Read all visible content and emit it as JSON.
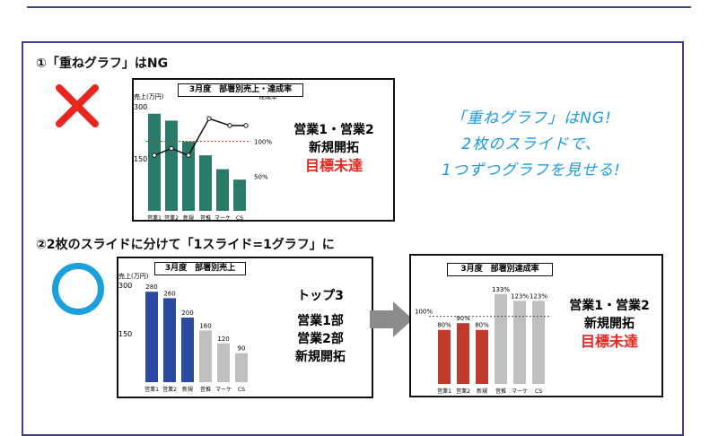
{
  "headings": {
    "section1": "①「重ねグラフ」はNG",
    "section2": "②2枚のスライドに分けて「1スライド=1グラフ」に"
  },
  "icons": {
    "ng_mark": "cross-icon",
    "ok_mark": "circle-icon",
    "arrow": "right-arrow-icon",
    "ng_color": "#e8261f",
    "ok_color": "#1aa0dc"
  },
  "handwritten_note": {
    "line1": "「重ねグラフ」はNG!",
    "line2": "2枚のスライドで、",
    "line3": "1つずつグラフを見せる!"
  },
  "chart1_side": {
    "line1": "営業1・営業2",
    "line2": "新規開拓",
    "line3": "目標未達"
  },
  "chart2_side": {
    "line1": "トップ3",
    "line2": "営業1部",
    "line3": "営業2部",
    "line4": "新規開拓"
  },
  "chart3_side": {
    "line1": "営業1・営業2",
    "line2": "新規開拓",
    "line3": "目標未達"
  },
  "chart_data": [
    {
      "type": "bar",
      "title": "3月度　部署別売上・達成率",
      "ylabel": "売上(万円)",
      "ylabel_right": "達成率",
      "categories": [
        "営業1",
        "営業2",
        "新規",
        "営推",
        "マーケ",
        "CS"
      ],
      "values": [
        280,
        260,
        200,
        160,
        120,
        90
      ],
      "y_ticks": [
        "300",
        "150"
      ],
      "ylim": [
        0,
        300
      ],
      "bar_color": "#2a7a6c",
      "line_series": {
        "values": [
          80,
          90,
          80,
          133,
          123,
          123
        ],
        "ylim": [
          0,
          150
        ]
      },
      "reference_line": {
        "value": 100,
        "label": "100%",
        "color": "#e8261f"
      },
      "right_ticks": [
        "100%",
        "50%"
      ]
    },
    {
      "type": "bar",
      "title": "3月度　部署別売上",
      "ylabel": "売上(万円)",
      "categories": [
        "営業1",
        "営業2",
        "新規",
        "営推",
        "マーケ",
        "CS"
      ],
      "values": [
        280,
        260,
        200,
        160,
        120,
        90
      ],
      "value_labels": [
        "280",
        "260",
        "200",
        "160",
        "120",
        "90"
      ],
      "y_ticks": [
        "300",
        "150"
      ],
      "ylim": [
        0,
        300
      ],
      "highlight_color": "#2a4aa0",
      "other_color": "#bfbfbf",
      "highlight_count": 3
    },
    {
      "type": "bar",
      "title": "3月度　部署別達成率",
      "categories": [
        "営業1",
        "営業2",
        "新規",
        "営推",
        "マーケ",
        "CS"
      ],
      "values": [
        80,
        90,
        80,
        133,
        123,
        123
      ],
      "value_labels": [
        "80%",
        "90%",
        "80%",
        "133%",
        "123%",
        "123%"
      ],
      "ylim": [
        0,
        150
      ],
      "reference_line": {
        "value": 100,
        "label": "100%"
      },
      "highlight_color": "#c0392b",
      "other_color": "#bfbfbf",
      "highlight_count": 3
    }
  ]
}
